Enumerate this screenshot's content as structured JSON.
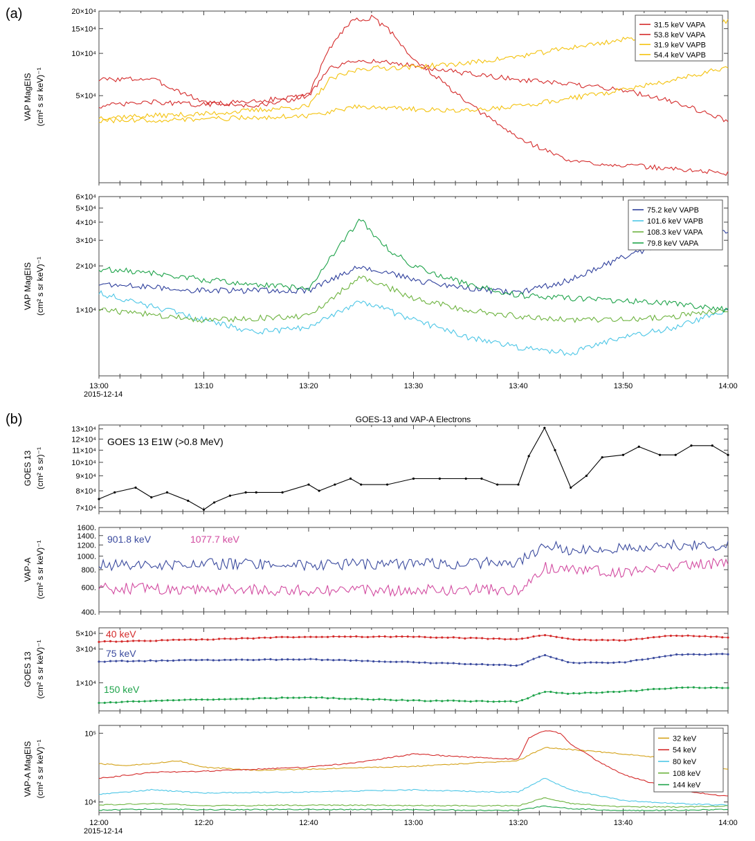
{
  "panel_a_label": "(a)",
  "panel_b_label": "(b)",
  "panel_b_title": "GOES-13 and VAP-A Electrons",
  "chart_data": [
    {
      "type": "line",
      "panel": "a1",
      "ylabel": [
        "VAP MagEIS",
        "(cm² s sr keV)⁻¹"
      ],
      "y_scale": "log",
      "ylim": [
        12000,
        200000
      ],
      "yticks": [
        {
          "value": 50000,
          "label": "5×10⁴"
        },
        {
          "value": 100000,
          "label": "10×10⁴"
        },
        {
          "value": 150000,
          "label": "15×10⁴"
        },
        {
          "value": 200000,
          "label": "20×10⁴"
        }
      ],
      "xlim": [
        "13:00",
        "14:00"
      ],
      "legend_position": "top-right",
      "series": [
        {
          "name": "31.5 keV VAPA",
          "color": "#d42a2a",
          "x": [
            "13:00",
            "13:05",
            "13:10",
            "13:15",
            "13:20",
            "13:22",
            "13:24",
            "13:26",
            "13:28",
            "13:30",
            "13:32",
            "13:35",
            "13:40",
            "13:45",
            "13:50",
            "13:55",
            "14:00"
          ],
          "values": [
            65000,
            66000,
            45000,
            42000,
            50000,
            110000,
            170000,
            180000,
            140000,
            90000,
            70000,
            45000,
            25000,
            17000,
            16000,
            15000,
            14000
          ]
        },
        {
          "name": "53.8 keV VAPA",
          "color": "#d42a2a",
          "x": [
            "13:00",
            "13:05",
            "13:10",
            "13:15",
            "13:20",
            "13:22",
            "13:25",
            "13:30",
            "13:35",
            "13:40",
            "13:45",
            "13:50",
            "13:55",
            "14:00"
          ],
          "values": [
            42000,
            45000,
            43000,
            46000,
            50000,
            78000,
            90000,
            82000,
            72000,
            65000,
            60000,
            55000,
            45000,
            33000
          ]
        },
        {
          "name": "31.9 keV VAPB",
          "color": "#f4c20d",
          "x": [
            "13:00",
            "13:10",
            "13:20",
            "13:22",
            "13:25",
            "13:30",
            "13:35",
            "13:40",
            "13:45",
            "13:50",
            "13:55",
            "14:00"
          ],
          "values": [
            35000,
            37000,
            42000,
            65000,
            78000,
            80000,
            85000,
            95000,
            110000,
            125000,
            145000,
            170000
          ]
        },
        {
          "name": "54.4 keV VAPB",
          "color": "#f4c20d",
          "x": [
            "13:00",
            "13:10",
            "13:20",
            "13:25",
            "13:30",
            "13:35",
            "13:40",
            "13:45",
            "13:50",
            "13:55",
            "14:00"
          ],
          "values": [
            33000,
            34000,
            36000,
            42000,
            40000,
            39000,
            42000,
            48000,
            55000,
            65000,
            80000
          ]
        }
      ]
    },
    {
      "type": "line",
      "panel": "a2",
      "ylabel": [
        "VAP MagEIS",
        "(cm² s sr keV)⁻¹"
      ],
      "y_scale": "log",
      "ylim": [
        3500,
        60000
      ],
      "yticks": [
        {
          "value": 10000,
          "label": "1×10⁴"
        },
        {
          "value": 20000,
          "label": "2×10⁴"
        },
        {
          "value": 30000,
          "label": "3×10⁴"
        },
        {
          "value": 40000,
          "label": "4×10⁴"
        },
        {
          "value": 50000,
          "label": "5×10⁴"
        },
        {
          "value": 60000,
          "label": "6×10⁴"
        }
      ],
      "xlim": [
        "13:00",
        "14:00"
      ],
      "xticks": [
        "13:00",
        "13:10",
        "13:20",
        "13:30",
        "13:40",
        "13:50",
        "14:00"
      ],
      "date_label": "2015-12-14",
      "legend_position": "top-right",
      "series": [
        {
          "name": "75.2 keV VAPB",
          "color": "#2e3f9c",
          "x": [
            "13:00",
            "13:10",
            "13:20",
            "13:25",
            "13:30",
            "13:35",
            "13:40",
            "13:45",
            "13:50",
            "13:55",
            "14:00"
          ],
          "values": [
            15000,
            13500,
            13500,
            20000,
            16000,
            14000,
            13000,
            16000,
            23000,
            30000,
            35000
          ]
        },
        {
          "name": "101.6 keV VAPB",
          "color": "#4cc6e6",
          "x": [
            "13:00",
            "13:05",
            "13:10",
            "13:15",
            "13:20",
            "13:25",
            "13:30",
            "13:35",
            "13:40",
            "13:45",
            "13:50",
            "13:55",
            "14:00"
          ],
          "values": [
            13000,
            10500,
            8500,
            7000,
            7500,
            11500,
            8500,
            6500,
            5500,
            5000,
            6500,
            7500,
            10000
          ]
        },
        {
          "name": "108.3 keV VAPA",
          "color": "#6db33f",
          "x": [
            "13:00",
            "13:10",
            "13:20",
            "13:25",
            "13:30",
            "13:35",
            "13:40",
            "13:45",
            "13:50",
            "13:55",
            "14:00"
          ],
          "values": [
            10000,
            8500,
            9000,
            17000,
            12000,
            10000,
            9000,
            8500,
            8500,
            9000,
            10000
          ]
        },
        {
          "name": "79.8 keV VAPA",
          "color": "#1ea34a",
          "x": [
            "13:00",
            "13:05",
            "13:10",
            "13:15",
            "13:20",
            "13:23",
            "13:25",
            "13:27",
            "13:30",
            "13:35",
            "13:40",
            "13:45",
            "13:50",
            "13:55",
            "14:00"
          ],
          "values": [
            19000,
            18000,
            16000,
            15000,
            14000,
            28000,
            42000,
            28000,
            20000,
            15000,
            12500,
            12000,
            11500,
            11000,
            10000
          ]
        }
      ]
    },
    {
      "type": "line",
      "panel": "b1",
      "ylabel": [
        "GOES 13",
        "(cm² s sr)⁻¹"
      ],
      "y_scale": "log",
      "ylim": [
        68000,
        134000
      ],
      "yticks": [
        {
          "value": 70000,
          "label": "7×10⁴"
        },
        {
          "value": 80000,
          "label": "8×10⁴"
        },
        {
          "value": 90000,
          "label": "9×10⁴"
        },
        {
          "value": 100000,
          "label": "10×10⁴"
        },
        {
          "value": 110000,
          "label": "11×10⁴"
        },
        {
          "value": 120000,
          "label": "12×10⁴"
        },
        {
          "value": 130000,
          "label": "13×10⁴"
        }
      ],
      "xlim": [
        "12:00",
        "14:00"
      ],
      "series": [
        {
          "name": "GOES 13 E1W (>0.8 MeV)",
          "color": "#000000",
          "markers": true,
          "x": [
            "12:00",
            "12:03",
            "12:07",
            "12:10",
            "12:13",
            "12:17",
            "12:20",
            "12:22",
            "12:25",
            "12:28",
            "12:30",
            "12:35",
            "12:40",
            "12:42",
            "12:45",
            "12:48",
            "12:50",
            "12:55",
            "13:00",
            "13:05",
            "13:10",
            "13:13",
            "13:16",
            "13:20",
            "13:22",
            "13:25",
            "13:27",
            "13:30",
            "13:33",
            "13:36",
            "13:40",
            "13:43",
            "13:47",
            "13:50",
            "13:53",
            "13:57",
            "14:00"
          ],
          "values": [
            75000,
            79000,
            82000,
            76000,
            79000,
            74000,
            69000,
            73000,
            77000,
            79000,
            79000,
            79000,
            84000,
            80000,
            84000,
            88000,
            84000,
            84000,
            88000,
            88000,
            88000,
            88000,
            84000,
            84000,
            105000,
            131000,
            110000,
            82000,
            90000,
            104000,
            106000,
            113000,
            106000,
            106000,
            114000,
            114000,
            106000
          ]
        }
      ]
    },
    {
      "type": "line",
      "panel": "b2",
      "ylabel": [
        "VAP-A",
        "(cm² s sr keV)⁻¹"
      ],
      "y_scale": "log",
      "ylim": [
        400,
        1600
      ],
      "yticks": [
        {
          "value": 400,
          "label": "400."
        },
        {
          "value": 600,
          "label": "600."
        },
        {
          "value": 800,
          "label": "800."
        },
        {
          "value": 1000,
          "label": "1000."
        },
        {
          "value": 1200,
          "label": "1200."
        },
        {
          "value": 1400,
          "label": "1400."
        },
        {
          "value": 1600,
          "label": "1600."
        }
      ],
      "xlim": [
        "12:00",
        "14:00"
      ],
      "series": [
        {
          "name": "901.8 keV",
          "color": "#3a4a9e",
          "x": [
            "12:00",
            "12:20",
            "12:40",
            "13:00",
            "13:20",
            "13:25",
            "13:30",
            "13:40",
            "13:50",
            "14:00"
          ],
          "values": [
            860,
            880,
            870,
            880,
            900,
            1200,
            1100,
            1150,
            1200,
            1200
          ]
        },
        {
          "name": "1077.7 keV",
          "color": "#d24aa0",
          "x": [
            "12:00",
            "12:20",
            "12:40",
            "13:00",
            "13:20",
            "13:25",
            "13:30",
            "13:40",
            "13:50",
            "14:00"
          ],
          "values": [
            590,
            580,
            570,
            570,
            580,
            830,
            800,
            760,
            850,
            900
          ]
        }
      ]
    },
    {
      "type": "line",
      "panel": "b3",
      "ylabel": [
        "GOES 13",
        "(cm² s sr keV)⁻¹"
      ],
      "y_scale": "log",
      "ylim": [
        4000,
        60000
      ],
      "yticks": [
        {
          "value": 10000,
          "label": "1×10⁴"
        },
        {
          "value": 30000,
          "label": "3×10⁴"
        },
        {
          "value": 50000,
          "label": "5×10⁴"
        }
      ],
      "xlim": [
        "12:00",
        "14:00"
      ],
      "series": [
        {
          "name": "40 keV",
          "color": "#d42a2a",
          "markers": true,
          "x": [
            "12:00",
            "12:20",
            "12:40",
            "13:00",
            "13:20",
            "13:25",
            "13:30",
            "13:40",
            "13:50",
            "14:00"
          ],
          "values": [
            38000,
            41000,
            45000,
            45000,
            41000,
            48000,
            41000,
            40000,
            47000,
            44000
          ]
        },
        {
          "name": "75 keV",
          "color": "#3a4a9e",
          "markers": true,
          "x": [
            "12:00",
            "12:20",
            "12:40",
            "13:00",
            "13:20",
            "13:25",
            "13:30",
            "13:40",
            "13:50",
            "14:00"
          ],
          "values": [
            20000,
            21000,
            21500,
            19500,
            17500,
            25000,
            19000,
            19500,
            25000,
            25500
          ]
        },
        {
          "name": "150 keV",
          "color": "#1ea34a",
          "markers": true,
          "x": [
            "12:00",
            "12:20",
            "12:40",
            "13:00",
            "13:20",
            "13:25",
            "13:30",
            "13:40",
            "13:50",
            "14:00"
          ],
          "values": [
            5200,
            5800,
            6200,
            5600,
            5400,
            7500,
            7000,
            7500,
            8500,
            8500
          ]
        }
      ]
    },
    {
      "type": "line",
      "panel": "b4",
      "ylabel": [
        "VAP-A MagEIS",
        "(cm² s sr keV)⁻¹"
      ],
      "y_scale": "log",
      "ylim": [
        7000,
        130000
      ],
      "yticks": [
        {
          "value": 10000,
          "label": "10⁴"
        },
        {
          "value": 100000,
          "label": "10⁵"
        }
      ],
      "xlim": [
        "12:00",
        "14:00"
      ],
      "xticks": [
        "12:00",
        "12:20",
        "12:40",
        "13:00",
        "13:20",
        "13:40",
        "14:00"
      ],
      "date_label": "2015-12-14",
      "legend_position": "top-right",
      "series": [
        {
          "name": "32 keV",
          "color": "#d4a21a",
          "x": [
            "12:00",
            "12:05",
            "12:10",
            "12:15",
            "12:20",
            "12:30",
            "12:40",
            "13:00",
            "13:20",
            "13:25",
            "13:30",
            "13:40",
            "13:50",
            "14:00"
          ],
          "values": [
            36000,
            34000,
            36000,
            40000,
            32000,
            29000,
            30000,
            33000,
            40000,
            62000,
            58000,
            50000,
            42000,
            30000
          ]
        },
        {
          "name": "54 keV",
          "color": "#d42a2a",
          "x": [
            "12:00",
            "12:10",
            "12:20",
            "12:40",
            "12:50",
            "13:00",
            "13:10",
            "13:20",
            "13:22",
            "13:25",
            "13:28",
            "13:30",
            "13:35",
            "13:40",
            "13:50",
            "14:00"
          ],
          "values": [
            22000,
            27000,
            28000,
            32000,
            38000,
            50000,
            45000,
            42000,
            85000,
            110000,
            100000,
            70000,
            40000,
            25000,
            15000,
            12000
          ]
        },
        {
          "name": "80 keV",
          "color": "#4cc6e6",
          "x": [
            "12:00",
            "12:10",
            "12:20",
            "12:40",
            "13:00",
            "13:15",
            "13:20",
            "13:25",
            "13:30",
            "13:40",
            "13:50",
            "14:00"
          ],
          "values": [
            13000,
            15000,
            13500,
            14000,
            15000,
            14000,
            14000,
            22000,
            15000,
            10500,
            9500,
            9000
          ]
        },
        {
          "name": "108 keV",
          "color": "#6db33f",
          "x": [
            "12:00",
            "12:10",
            "12:20",
            "12:40",
            "13:00",
            "13:20",
            "13:25",
            "13:30",
            "13:40",
            "13:50",
            "14:00"
          ],
          "values": [
            9000,
            9500,
            8800,
            9000,
            8900,
            8800,
            11500,
            9500,
            8500,
            8500,
            8700
          ]
        },
        {
          "name": "144 keV",
          "color": "#1ea34a",
          "x": [
            "12:00",
            "12:10",
            "12:20",
            "12:40",
            "13:00",
            "13:20",
            "13:25",
            "13:30",
            "13:40",
            "13:50",
            "14:00"
          ],
          "values": [
            7600,
            7900,
            7700,
            7800,
            7700,
            7500,
            8800,
            8000,
            7500,
            7600,
            7800
          ]
        }
      ]
    }
  ]
}
